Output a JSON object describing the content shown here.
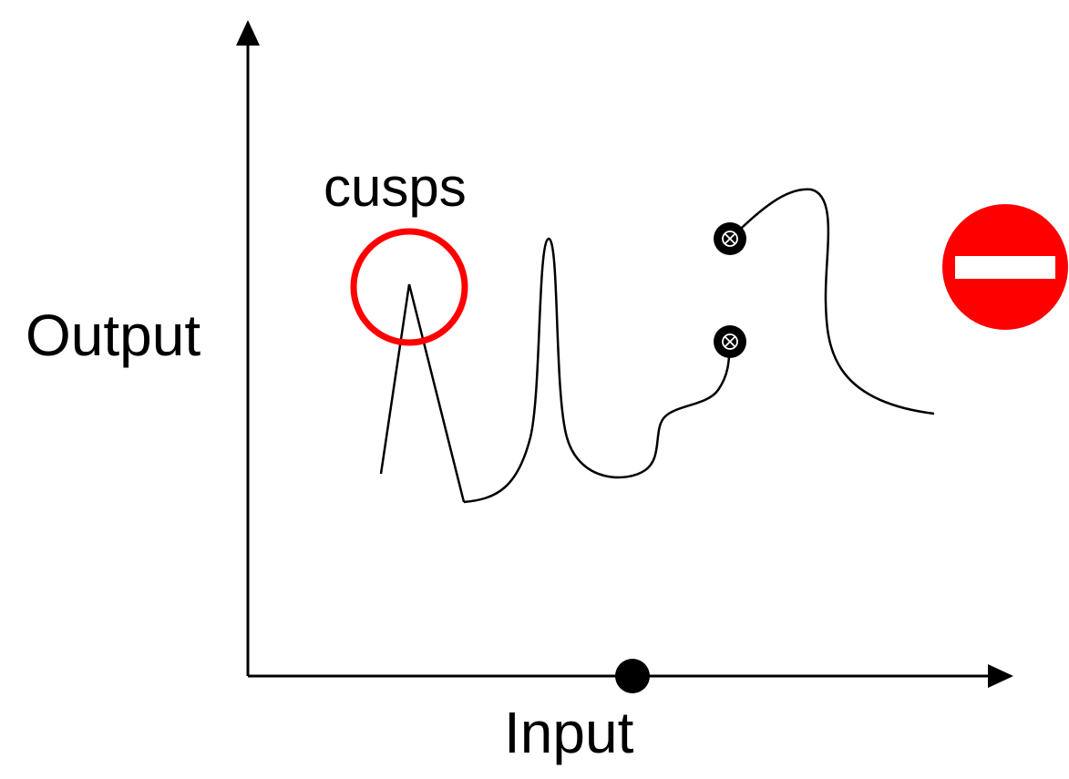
{
  "labels": {
    "y_axis": "Output",
    "x_axis": "Input",
    "annotation": "cusps"
  },
  "icons": {
    "no_entry": "no-entry-icon",
    "discontinuity_markers": "circled-x-icon",
    "input_point": "filled-dot-icon"
  },
  "colors": {
    "axes": "#000000",
    "curve": "#000000",
    "highlight_circle": "#ff0000",
    "no_entry_sign": "#ff0000",
    "no_entry_bar": "#ffffff"
  }
}
